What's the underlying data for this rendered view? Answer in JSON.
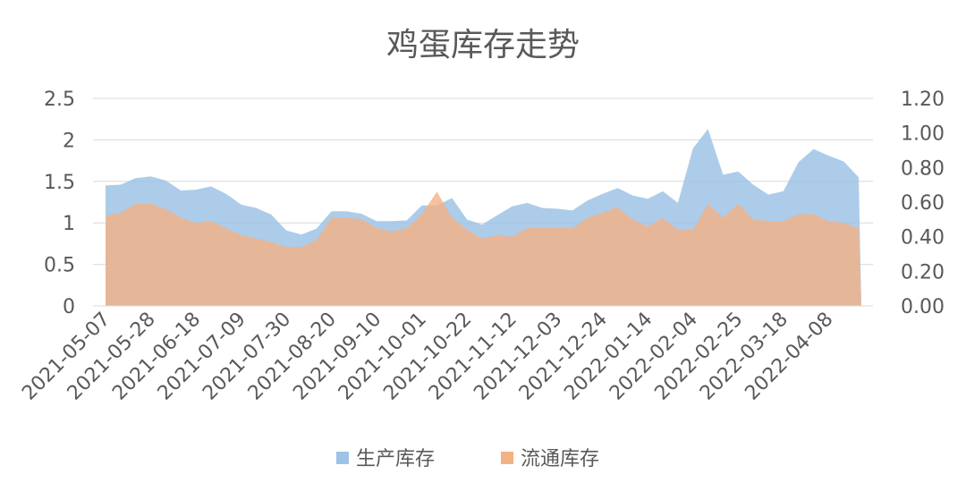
{
  "chart_data": {
    "type": "area",
    "title": "鸡蛋库存走势",
    "x": [
      "2021-05-07",
      "2021-05-14",
      "2021-05-21",
      "2021-05-28",
      "2021-06-04",
      "2021-06-11",
      "2021-06-18",
      "2021-06-25",
      "2021-07-02",
      "2021-07-09",
      "2021-07-16",
      "2021-07-23",
      "2021-07-30",
      "2021-08-06",
      "2021-08-13",
      "2021-08-20",
      "2021-08-27",
      "2021-09-03",
      "2021-09-10",
      "2021-09-17",
      "2021-09-24",
      "2021-10-01",
      "2021-10-08",
      "2021-10-15",
      "2021-10-22",
      "2021-10-29",
      "2021-11-05",
      "2021-11-12",
      "2021-11-19",
      "2021-11-26",
      "2021-12-03",
      "2021-12-10",
      "2021-12-17",
      "2021-12-24",
      "2021-12-31",
      "2022-01-07",
      "2022-01-14",
      "2022-01-21",
      "2022-01-28",
      "2022-02-04",
      "2022-02-11",
      "2022-02-18",
      "2022-02-25",
      "2022-03-04",
      "2022-03-11",
      "2022-03-18",
      "2022-03-25",
      "2022-04-01",
      "2022-04-08",
      "2022-04-15",
      "2022-04-22"
    ],
    "x_tick_labels": [
      "2021-05-07",
      "2021-05-28",
      "2021-06-18",
      "2021-07-09",
      "2021-07-30",
      "2021-08-20",
      "2021-09-10",
      "2021-10-01",
      "2021-10-22",
      "2021-11-12",
      "2021-12-03",
      "2021-12-24",
      "2022-01-14",
      "2022-02-04",
      "2022-02-25",
      "2022-03-18",
      "2022-04-08"
    ],
    "y_left_ticks": [
      "0",
      "0.5",
      "1",
      "1.5",
      "2",
      "2.5"
    ],
    "y_left_range": [
      0,
      2.5
    ],
    "y_right_ticks": [
      "0.00",
      "0.20",
      "0.40",
      "0.60",
      "0.80",
      "1.00",
      "1.20"
    ],
    "y_right_range": [
      0,
      1.2
    ],
    "series": [
      {
        "name": "生产库存",
        "axis": "left",
        "color": "#9dc3e6",
        "values": [
          1.45,
          1.46,
          1.54,
          1.56,
          1.51,
          1.39,
          1.4,
          1.44,
          1.35,
          1.22,
          1.18,
          1.1,
          0.91,
          0.86,
          0.93,
          1.14,
          1.14,
          1.11,
          1.02,
          1.02,
          1.03,
          1.21,
          1.21,
          1.3,
          1.04,
          0.98,
          1.09,
          1.2,
          1.24,
          1.18,
          1.17,
          1.15,
          1.27,
          1.35,
          1.42,
          1.33,
          1.29,
          1.38,
          1.24,
          1.9,
          2.13,
          1.58,
          1.62,
          1.46,
          1.34,
          1.38,
          1.73,
          1.89,
          1.81,
          1.74,
          1.55
        ]
      },
      {
        "name": "流通库存",
        "axis": "right",
        "color": "#f4b183",
        "values": [
          0.52,
          0.54,
          0.59,
          0.59,
          0.56,
          0.51,
          0.48,
          0.49,
          0.45,
          0.41,
          0.39,
          0.37,
          0.34,
          0.34,
          0.38,
          0.51,
          0.51,
          0.5,
          0.45,
          0.43,
          0.45,
          0.53,
          0.66,
          0.51,
          0.44,
          0.39,
          0.41,
          0.4,
          0.45,
          0.45,
          0.45,
          0.45,
          0.51,
          0.54,
          0.57,
          0.5,
          0.46,
          0.51,
          0.44,
          0.44,
          0.59,
          0.51,
          0.59,
          0.5,
          0.49,
          0.49,
          0.53,
          0.53,
          0.49,
          0.48,
          0.45
        ]
      }
    ],
    "legend": "bottom",
    "grid": true
  }
}
